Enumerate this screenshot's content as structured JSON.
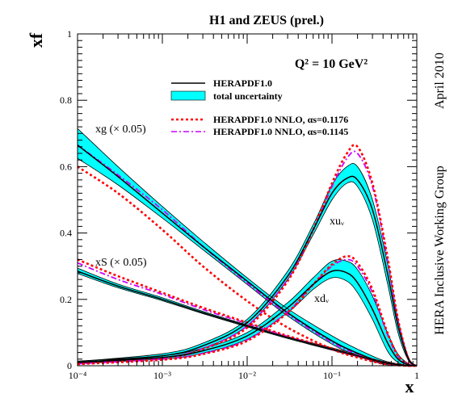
{
  "chart_data": {
    "type": "line",
    "title": "H1 and ZEUS (prel.)",
    "xlabel": "x",
    "ylabel": "xf",
    "xscale": "log",
    "xlim": [
      0.0001,
      1
    ],
    "ylim": [
      0,
      1
    ],
    "scale_label": "Q² = 10 GeV²",
    "right_label_top": "April 2010",
    "right_label_bottom": "HERA Inclusive Working Group",
    "x_tick_labels": [
      "10⁻⁴",
      "10⁻³",
      "10⁻²",
      "10⁻¹",
      "1"
    ],
    "y_tick_labels": [
      "0",
      "0.2",
      "0.4",
      "0.6",
      "0.8",
      "1"
    ],
    "legend": {
      "placement": "top-right",
      "entries": [
        {
          "key": "central",
          "label": "HERAPDF1.0"
        },
        {
          "key": "band",
          "label": "total uncertainty"
        },
        {
          "key": "nnlo1176",
          "label": "HERAPDF1.0 NNLO, αs=0.1176"
        },
        {
          "key": "nnlo1145",
          "label": "HERAPDF1.0 NNLO, αs=0.1145"
        }
      ]
    },
    "curve_labels": {
      "xg": "xg (× 0.05)",
      "xS": "xS (× 0.05)",
      "xuv": "xuᵥ",
      "xdv": "xdᵥ"
    },
    "colors": {
      "central": "#000000",
      "band": "#00ffff",
      "nnlo1176": "#ff0000",
      "nnlo1145": "#cc00ff"
    },
    "series": [
      {
        "name": "xg (× 0.05)",
        "pdf": "xg",
        "x": [
          0.0001,
          0.0003,
          0.001,
          0.003,
          0.01,
          0.03,
          0.1,
          0.2,
          0.4,
          0.7,
          1.0
        ],
        "central": [
          0.665,
          0.57,
          0.46,
          0.36,
          0.255,
          0.16,
          0.075,
          0.038,
          0.01,
          0.001,
          0
        ],
        "band_lo": [
          0.625,
          0.545,
          0.445,
          0.35,
          0.245,
          0.15,
          0.065,
          0.03,
          0.005,
          0.0,
          0
        ],
        "band_hi": [
          0.715,
          0.6,
          0.48,
          0.375,
          0.265,
          0.172,
          0.09,
          0.05,
          0.016,
          0.003,
          0
        ],
        "nnlo_1176": [
          0.6,
          0.52,
          0.41,
          0.3,
          0.195,
          0.115,
          0.05,
          0.025,
          0.006,
          0.0005,
          0
        ],
        "nnlo_1145": [
          0.665,
          0.575,
          0.47,
          0.36,
          0.25,
          0.155,
          0.07,
          0.035,
          0.009,
          0.001,
          0
        ]
      },
      {
        "name": "xS (× 0.05)",
        "pdf": "xS",
        "x": [
          0.0001,
          0.0003,
          0.001,
          0.003,
          0.01,
          0.03,
          0.1,
          0.2,
          0.4,
          0.7,
          1.0
        ],
        "central": [
          0.285,
          0.24,
          0.2,
          0.16,
          0.12,
          0.085,
          0.05,
          0.03,
          0.01,
          0.001,
          0
        ],
        "band_lo": [
          0.278,
          0.235,
          0.196,
          0.157,
          0.117,
          0.082,
          0.047,
          0.027,
          0.008,
          0.0005,
          0
        ],
        "band_hi": [
          0.294,
          0.246,
          0.205,
          0.164,
          0.123,
          0.088,
          0.054,
          0.034,
          0.013,
          0.002,
          0
        ],
        "nnlo_1176": [
          0.32,
          0.27,
          0.22,
          0.175,
          0.13,
          0.09,
          0.052,
          0.03,
          0.01,
          0.001,
          0
        ],
        "nnlo_1145": [
          0.31,
          0.26,
          0.215,
          0.17,
          0.127,
          0.088,
          0.05,
          0.029,
          0.009,
          0.001,
          0
        ]
      },
      {
        "name": "xuᵥ",
        "pdf": "xuv",
        "x": [
          0.0001,
          0.001,
          0.003,
          0.01,
          0.03,
          0.06,
          0.1,
          0.15,
          0.2,
          0.3,
          0.45,
          0.6,
          0.8,
          1.0
        ],
        "central": [
          0.01,
          0.03,
          0.06,
          0.13,
          0.27,
          0.41,
          0.52,
          0.565,
          0.56,
          0.47,
          0.28,
          0.12,
          0.02,
          0
        ],
        "band_lo": [
          0.007,
          0.025,
          0.052,
          0.12,
          0.26,
          0.395,
          0.5,
          0.55,
          0.54,
          0.44,
          0.25,
          0.1,
          0.015,
          0
        ],
        "band_hi": [
          0.013,
          0.036,
          0.068,
          0.14,
          0.285,
          0.425,
          0.545,
          0.6,
          0.6,
          0.5,
          0.31,
          0.14,
          0.025,
          0
        ],
        "nnlo_1176": [
          0.005,
          0.022,
          0.05,
          0.115,
          0.255,
          0.41,
          0.55,
          0.64,
          0.66,
          0.55,
          0.33,
          0.14,
          0.02,
          0
        ],
        "nnlo_1145": [
          0.006,
          0.024,
          0.052,
          0.12,
          0.26,
          0.41,
          0.54,
          0.625,
          0.64,
          0.54,
          0.32,
          0.135,
          0.02,
          0
        ]
      },
      {
        "name": "xdᵥ",
        "pdf": "xdv",
        "x": [
          0.0001,
          0.001,
          0.003,
          0.01,
          0.03,
          0.06,
          0.1,
          0.15,
          0.2,
          0.3,
          0.45,
          0.6,
          0.8,
          1.0
        ],
        "central": [
          0.01,
          0.025,
          0.045,
          0.09,
          0.175,
          0.245,
          0.285,
          0.28,
          0.25,
          0.17,
          0.07,
          0.02,
          0.003,
          0
        ],
        "band_lo": [
          0.007,
          0.02,
          0.038,
          0.08,
          0.16,
          0.23,
          0.265,
          0.255,
          0.22,
          0.14,
          0.045,
          0.01,
          0.0,
          0
        ],
        "band_hi": [
          0.014,
          0.03,
          0.053,
          0.1,
          0.19,
          0.265,
          0.315,
          0.315,
          0.29,
          0.21,
          0.1,
          0.035,
          0.006,
          0
        ],
        "nnlo_1176": [
          0.005,
          0.018,
          0.035,
          0.075,
          0.16,
          0.245,
          0.305,
          0.33,
          0.31,
          0.23,
          0.1,
          0.03,
          0.004,
          0
        ],
        "nnlo_1145": [
          0.006,
          0.02,
          0.037,
          0.078,
          0.163,
          0.245,
          0.3,
          0.32,
          0.3,
          0.22,
          0.095,
          0.028,
          0.004,
          0
        ]
      }
    ]
  }
}
